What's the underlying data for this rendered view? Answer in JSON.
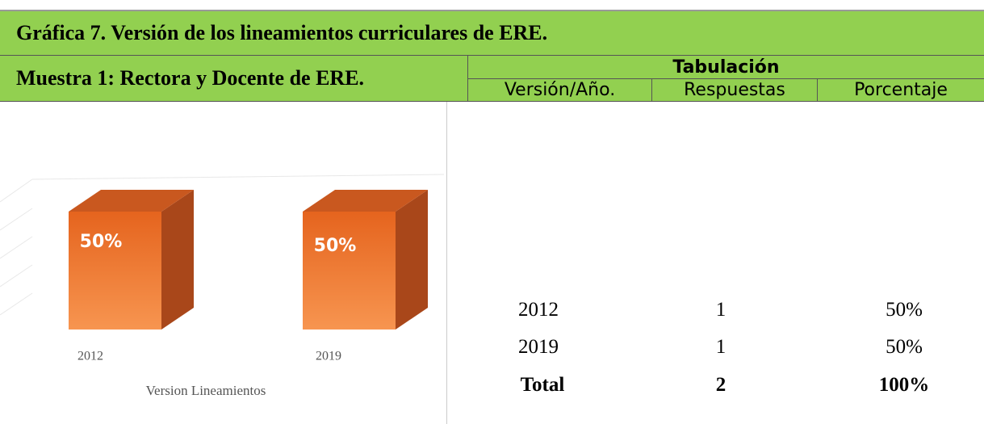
{
  "title": "Gráfica 7. Versión de los lineamientos curriculares de ERE.",
  "sample": "Muestra 1: Rectora y Docente de ERE.",
  "table": {
    "heading": "Tabulación",
    "columns": [
      "Versión/Año.",
      "Respuestas",
      "Porcentaje"
    ],
    "rows": [
      [
        "2012",
        "1",
        "50%"
      ],
      [
        "2019",
        "1",
        "50%"
      ]
    ],
    "total": [
      "Total",
      "2",
      "100%"
    ]
  },
  "chart_data": {
    "type": "bar3d",
    "categories": [
      "2012",
      "2019"
    ],
    "values": [
      50,
      50
    ],
    "value_labels": [
      "50%",
      "50%"
    ],
    "x_label": "Version Lineamientos",
    "color": "#ee7a2f"
  }
}
